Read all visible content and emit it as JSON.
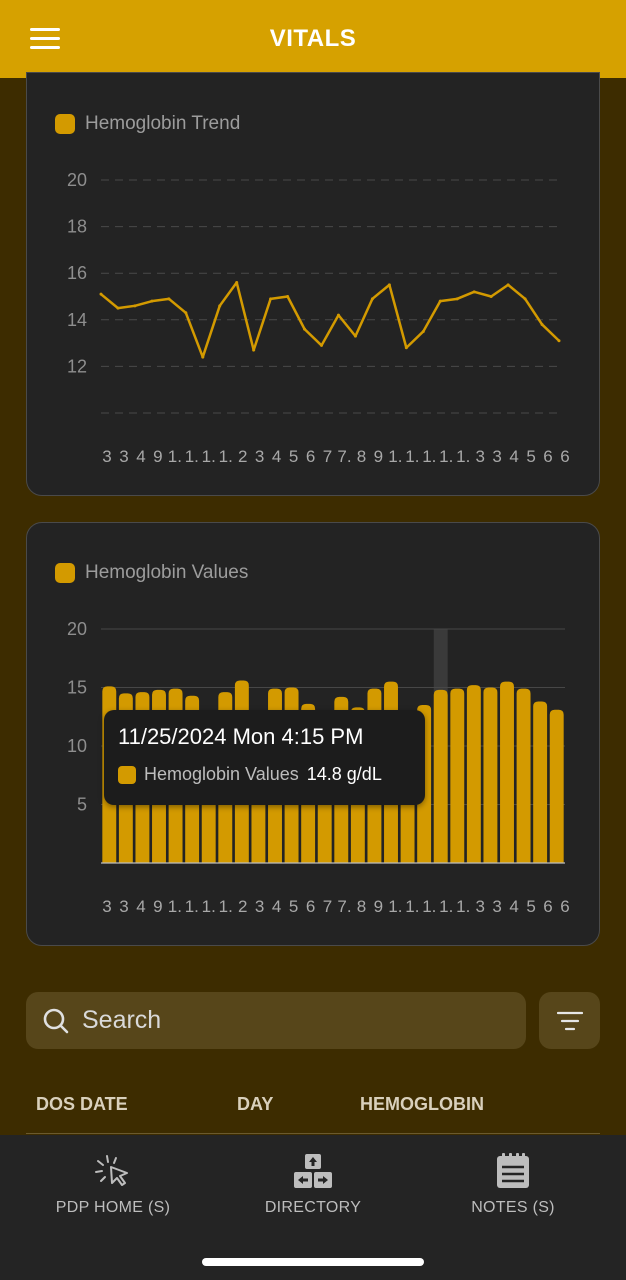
{
  "header": {
    "title": "VITALS"
  },
  "trend_card": {
    "legend": "Hemoglobin Trend",
    "chart_data": {
      "type": "line",
      "title": "Hemoglobin Trend",
      "y_ticks": [
        "20",
        "18",
        "16",
        "14",
        "12"
      ],
      "ylim": [
        10,
        20
      ],
      "x_tick_labels": [
        "3",
        "3",
        "4",
        "9",
        "1.",
        "1.",
        "1.",
        "1.",
        "2",
        "3",
        "4",
        "5",
        "6",
        "7",
        "7.",
        "8",
        "9",
        "1.",
        "1.",
        "1.",
        "1.",
        "1.",
        "3",
        "3",
        "4",
        "5",
        "6",
        "6"
      ],
      "values": [
        15.1,
        14.5,
        14.6,
        14.8,
        14.9,
        14.3,
        12.4,
        14.6,
        15.6,
        12.7,
        14.9,
        15.0,
        13.6,
        12.9,
        14.2,
        13.3,
        14.9,
        15.5,
        12.8,
        13.5,
        14.8,
        14.9,
        15.2,
        15.0,
        15.5,
        14.9,
        13.8,
        13.1
      ],
      "grid": true,
      "color": "#d39a00"
    }
  },
  "values_card": {
    "legend": "Hemoglobin Values",
    "chart_data": {
      "type": "bar",
      "title": "Hemoglobin Values",
      "y_ticks": [
        "20",
        "15",
        "10",
        "5"
      ],
      "ylim": [
        0,
        20
      ],
      "x_tick_labels": [
        "3",
        "3",
        "4",
        "9",
        "1.",
        "1.",
        "1.",
        "1.",
        "2",
        "3",
        "4",
        "5",
        "6",
        "7",
        "7.",
        "8",
        "9",
        "1.",
        "1.",
        "1.",
        "1.",
        "1.",
        "3",
        "3",
        "4",
        "5",
        "6",
        "6"
      ],
      "values": [
        15.1,
        14.5,
        14.6,
        14.8,
        14.9,
        14.3,
        12.4,
        14.6,
        15.6,
        12.7,
        14.9,
        15.0,
        13.6,
        12.9,
        14.2,
        13.3,
        14.9,
        15.5,
        12.8,
        13.5,
        14.8,
        14.9,
        15.2,
        15.0,
        15.5,
        14.9,
        13.8,
        13.1
      ],
      "highlight_index": 20,
      "grid": true,
      "color": "#d39a00"
    },
    "tooltip": {
      "date": "11/25/2024 Mon 4:15 PM",
      "series": "Hemoglobin Values",
      "value": "14.8 g/dL"
    }
  },
  "search": {
    "placeholder": "Search"
  },
  "table": {
    "columns": [
      "DOS DATE",
      "DAY",
      "HEMOGLOBIN"
    ]
  },
  "bottom_nav": {
    "items": [
      {
        "label": "PDP HOME (S)",
        "icon": "pointer-click-icon"
      },
      {
        "label": "DIRECTORY",
        "icon": "directory-arrows-icon"
      },
      {
        "label": "NOTES (S)",
        "icon": "notes-icon"
      }
    ]
  }
}
